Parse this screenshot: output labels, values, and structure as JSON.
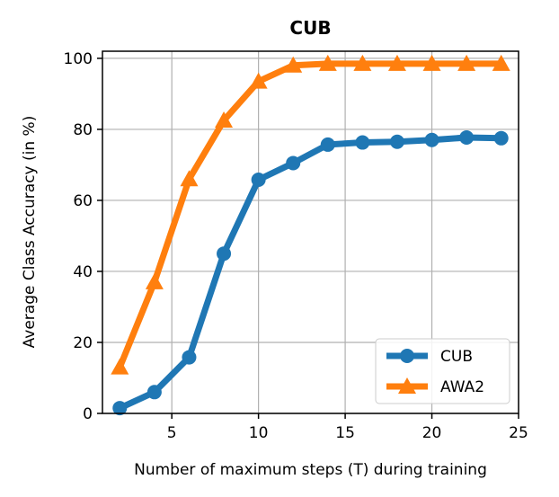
{
  "chart_data": {
    "type": "line",
    "title": "CUB",
    "xlabel": "Number of maximum steps (T) during training",
    "ylabel": "Average Class Accuracy (in %)",
    "xlim": [
      1,
      25
    ],
    "ylim": [
      0,
      102
    ],
    "xticks": [
      5,
      10,
      15,
      20,
      25
    ],
    "yticks": [
      0,
      20,
      40,
      60,
      80,
      100
    ],
    "grid": true,
    "legend_position": "bottom-right",
    "x": [
      2,
      4,
      6,
      8,
      10,
      12,
      14,
      16,
      18,
      20,
      22,
      24
    ],
    "series": [
      {
        "name": "CUB",
        "color": "#1f77b4",
        "marker": "circle",
        "values": [
          1.5,
          6,
          15.8,
          45,
          65.8,
          70.5,
          75.7,
          76.3,
          76.5,
          77,
          77.7,
          77.5
        ]
      },
      {
        "name": "AWA2",
        "color": "#ff7f0e",
        "marker": "triangle",
        "values": [
          13,
          37,
          66,
          82.5,
          93.5,
          98,
          98.5,
          98.5,
          98.5,
          98.5,
          98.5,
          98.5
        ]
      }
    ]
  }
}
